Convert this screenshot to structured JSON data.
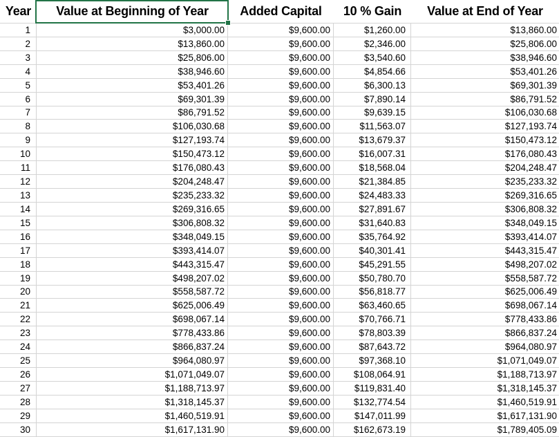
{
  "table": {
    "headers": [
      "Year",
      "Value at Beginning of Year",
      "Added Capital",
      "10 % Gain",
      "Value at End of Year"
    ],
    "column_keys": [
      "year",
      "begin-value",
      "added-capital",
      "gain",
      "end-value"
    ],
    "rows": [
      [
        "1",
        "$3,000.00",
        "$9,600.00",
        "$1,260.00",
        "$13,860.00"
      ],
      [
        "2",
        "$13,860.00",
        "$9,600.00",
        "$2,346.00",
        "$25,806.00"
      ],
      [
        "3",
        "$25,806.00",
        "$9,600.00",
        "$3,540.60",
        "$38,946.60"
      ],
      [
        "4",
        "$38,946.60",
        "$9,600.00",
        "$4,854.66",
        "$53,401.26"
      ],
      [
        "5",
        "$53,401.26",
        "$9,600.00",
        "$6,300.13",
        "$69,301.39"
      ],
      [
        "6",
        "$69,301.39",
        "$9,600.00",
        "$7,890.14",
        "$86,791.52"
      ],
      [
        "7",
        "$86,791.52",
        "$9,600.00",
        "$9,639.15",
        "$106,030.68"
      ],
      [
        "8",
        "$106,030.68",
        "$9,600.00",
        "$11,563.07",
        "$127,193.74"
      ],
      [
        "9",
        "$127,193.74",
        "$9,600.00",
        "$13,679.37",
        "$150,473.12"
      ],
      [
        "10",
        "$150,473.12",
        "$9,600.00",
        "$16,007.31",
        "$176,080.43"
      ],
      [
        "11",
        "$176,080.43",
        "$9,600.00",
        "$18,568.04",
        "$204,248.47"
      ],
      [
        "12",
        "$204,248.47",
        "$9,600.00",
        "$21,384.85",
        "$235,233.32"
      ],
      [
        "13",
        "$235,233.32",
        "$9,600.00",
        "$24,483.33",
        "$269,316.65"
      ],
      [
        "14",
        "$269,316.65",
        "$9,600.00",
        "$27,891.67",
        "$306,808.32"
      ],
      [
        "15",
        "$306,808.32",
        "$9,600.00",
        "$31,640.83",
        "$348,049.15"
      ],
      [
        "16",
        "$348,049.15",
        "$9,600.00",
        "$35,764.92",
        "$393,414.07"
      ],
      [
        "17",
        "$393,414.07",
        "$9,600.00",
        "$40,301.41",
        "$443,315.47"
      ],
      [
        "18",
        "$443,315.47",
        "$9,600.00",
        "$45,291.55",
        "$498,207.02"
      ],
      [
        "19",
        "$498,207.02",
        "$9,600.00",
        "$50,780.70",
        "$558,587.72"
      ],
      [
        "20",
        "$558,587.72",
        "$9,600.00",
        "$56,818.77",
        "$625,006.49"
      ],
      [
        "21",
        "$625,006.49",
        "$9,600.00",
        "$63,460.65",
        "$698,067.14"
      ],
      [
        "22",
        "$698,067.14",
        "$9,600.00",
        "$70,766.71",
        "$778,433.86"
      ],
      [
        "23",
        "$778,433.86",
        "$9,600.00",
        "$78,803.39",
        "$866,837.24"
      ],
      [
        "24",
        "$866,837.24",
        "$9,600.00",
        "$87,643.72",
        "$964,080.97"
      ],
      [
        "25",
        "$964,080.97",
        "$9,600.00",
        "$97,368.10",
        "$1,071,049.07"
      ],
      [
        "26",
        "$1,071,049.07",
        "$9,600.00",
        "$108,064.91",
        "$1,188,713.97"
      ],
      [
        "27",
        "$1,188,713.97",
        "$9,600.00",
        "$119,831.40",
        "$1,318,145.37"
      ],
      [
        "28",
        "$1,318,145.37",
        "$9,600.00",
        "$132,774.54",
        "$1,460,519.91"
      ],
      [
        "29",
        "$1,460,519.91",
        "$9,600.00",
        "$147,011.99",
        "$1,617,131.90"
      ],
      [
        "30",
        "$1,617,131.90",
        "$9,600.00",
        "$162,673.19",
        "$1,789,405.09"
      ]
    ]
  },
  "selection": {
    "selected_header": "Value at Beginning of Year",
    "border_color": "#217346"
  },
  "colors": {
    "gridline": "#d4d4d4",
    "text": "#000000",
    "background": "#ffffff"
  }
}
